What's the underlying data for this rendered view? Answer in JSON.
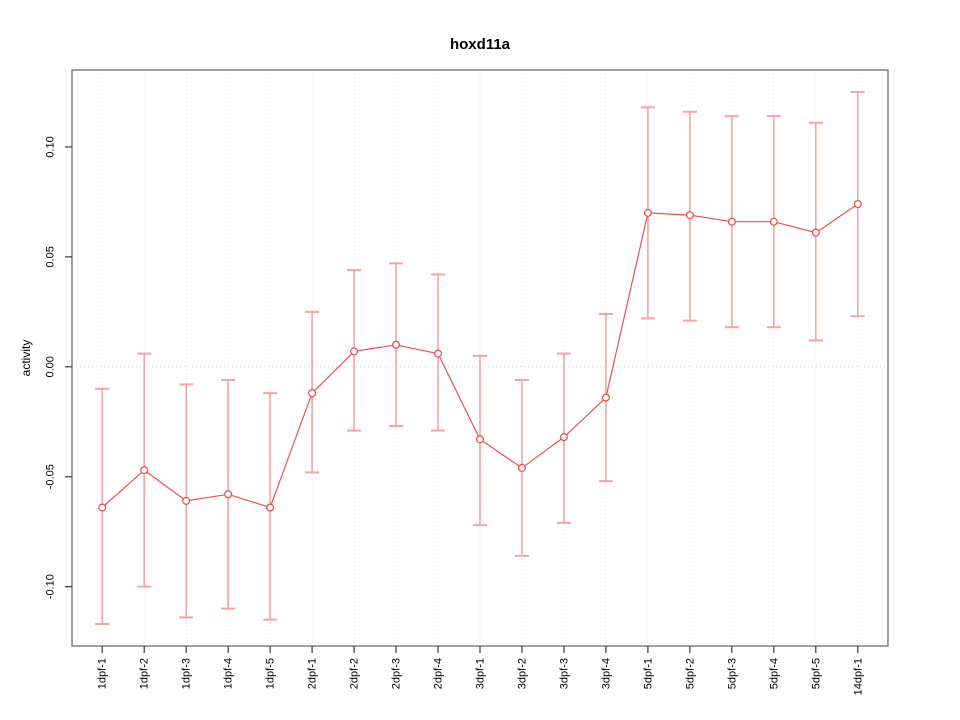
{
  "chart_data": {
    "type": "line",
    "title": "hoxd11a",
    "xlabel": "",
    "ylabel": "activity",
    "categories": [
      "1dpf-1",
      "1dpf-2",
      "1dpf-3",
      "1dpf-4",
      "1dpf-5",
      "2dpf-1",
      "2dpf-2",
      "2dpf-3",
      "2dpf-4",
      "3dpf-1",
      "3dpf-2",
      "3dpf-3",
      "3dpf-4",
      "5dpf-1",
      "5dpf-2",
      "5dpf-3",
      "5dpf-4",
      "5dpf-5",
      "14dpf-1"
    ],
    "series": [
      {
        "name": "activity",
        "values": [
          -0.064,
          -0.047,
          -0.061,
          -0.058,
          -0.064,
          -0.012,
          0.007,
          0.01,
          0.006,
          -0.033,
          -0.046,
          -0.032,
          -0.014,
          0.07,
          0.069,
          0.066,
          0.066,
          0.061,
          0.074
        ],
        "lower": [
          -0.117,
          -0.1,
          -0.114,
          -0.11,
          -0.115,
          -0.048,
          -0.029,
          -0.027,
          -0.029,
          -0.072,
          -0.086,
          -0.071,
          -0.052,
          0.022,
          0.021,
          0.018,
          0.018,
          0.012,
          0.023
        ],
        "upper": [
          -0.01,
          0.006,
          -0.008,
          -0.006,
          -0.012,
          0.025,
          0.044,
          0.047,
          0.042,
          0.005,
          -0.006,
          0.006,
          0.024,
          0.118,
          0.116,
          0.114,
          0.114,
          0.111,
          0.125
        ]
      }
    ],
    "yticks": [
      -0.1,
      -0.05,
      0.0,
      0.05,
      0.1
    ],
    "ytick_labels": [
      "-0.10",
      "-0.05",
      "0.00",
      "0.05",
      "0.10"
    ],
    "ylim": [
      -0.127,
      0.135
    ],
    "grid": {
      "vertical": "dotted at each category",
      "horizontal": "dotted at 0"
    },
    "legend": "none",
    "marker": "open-circle",
    "colors": {
      "line": "#ee5252",
      "point_stroke": "#ee4747",
      "point_fill": "#ffffff",
      "error_bar": "#f5a3a3",
      "grid": "#d9d9d9",
      "zero_line": "#d2d2d2",
      "box": "#6e6e6e",
      "tick": "#3a3a3a",
      "text": "#000000"
    }
  }
}
